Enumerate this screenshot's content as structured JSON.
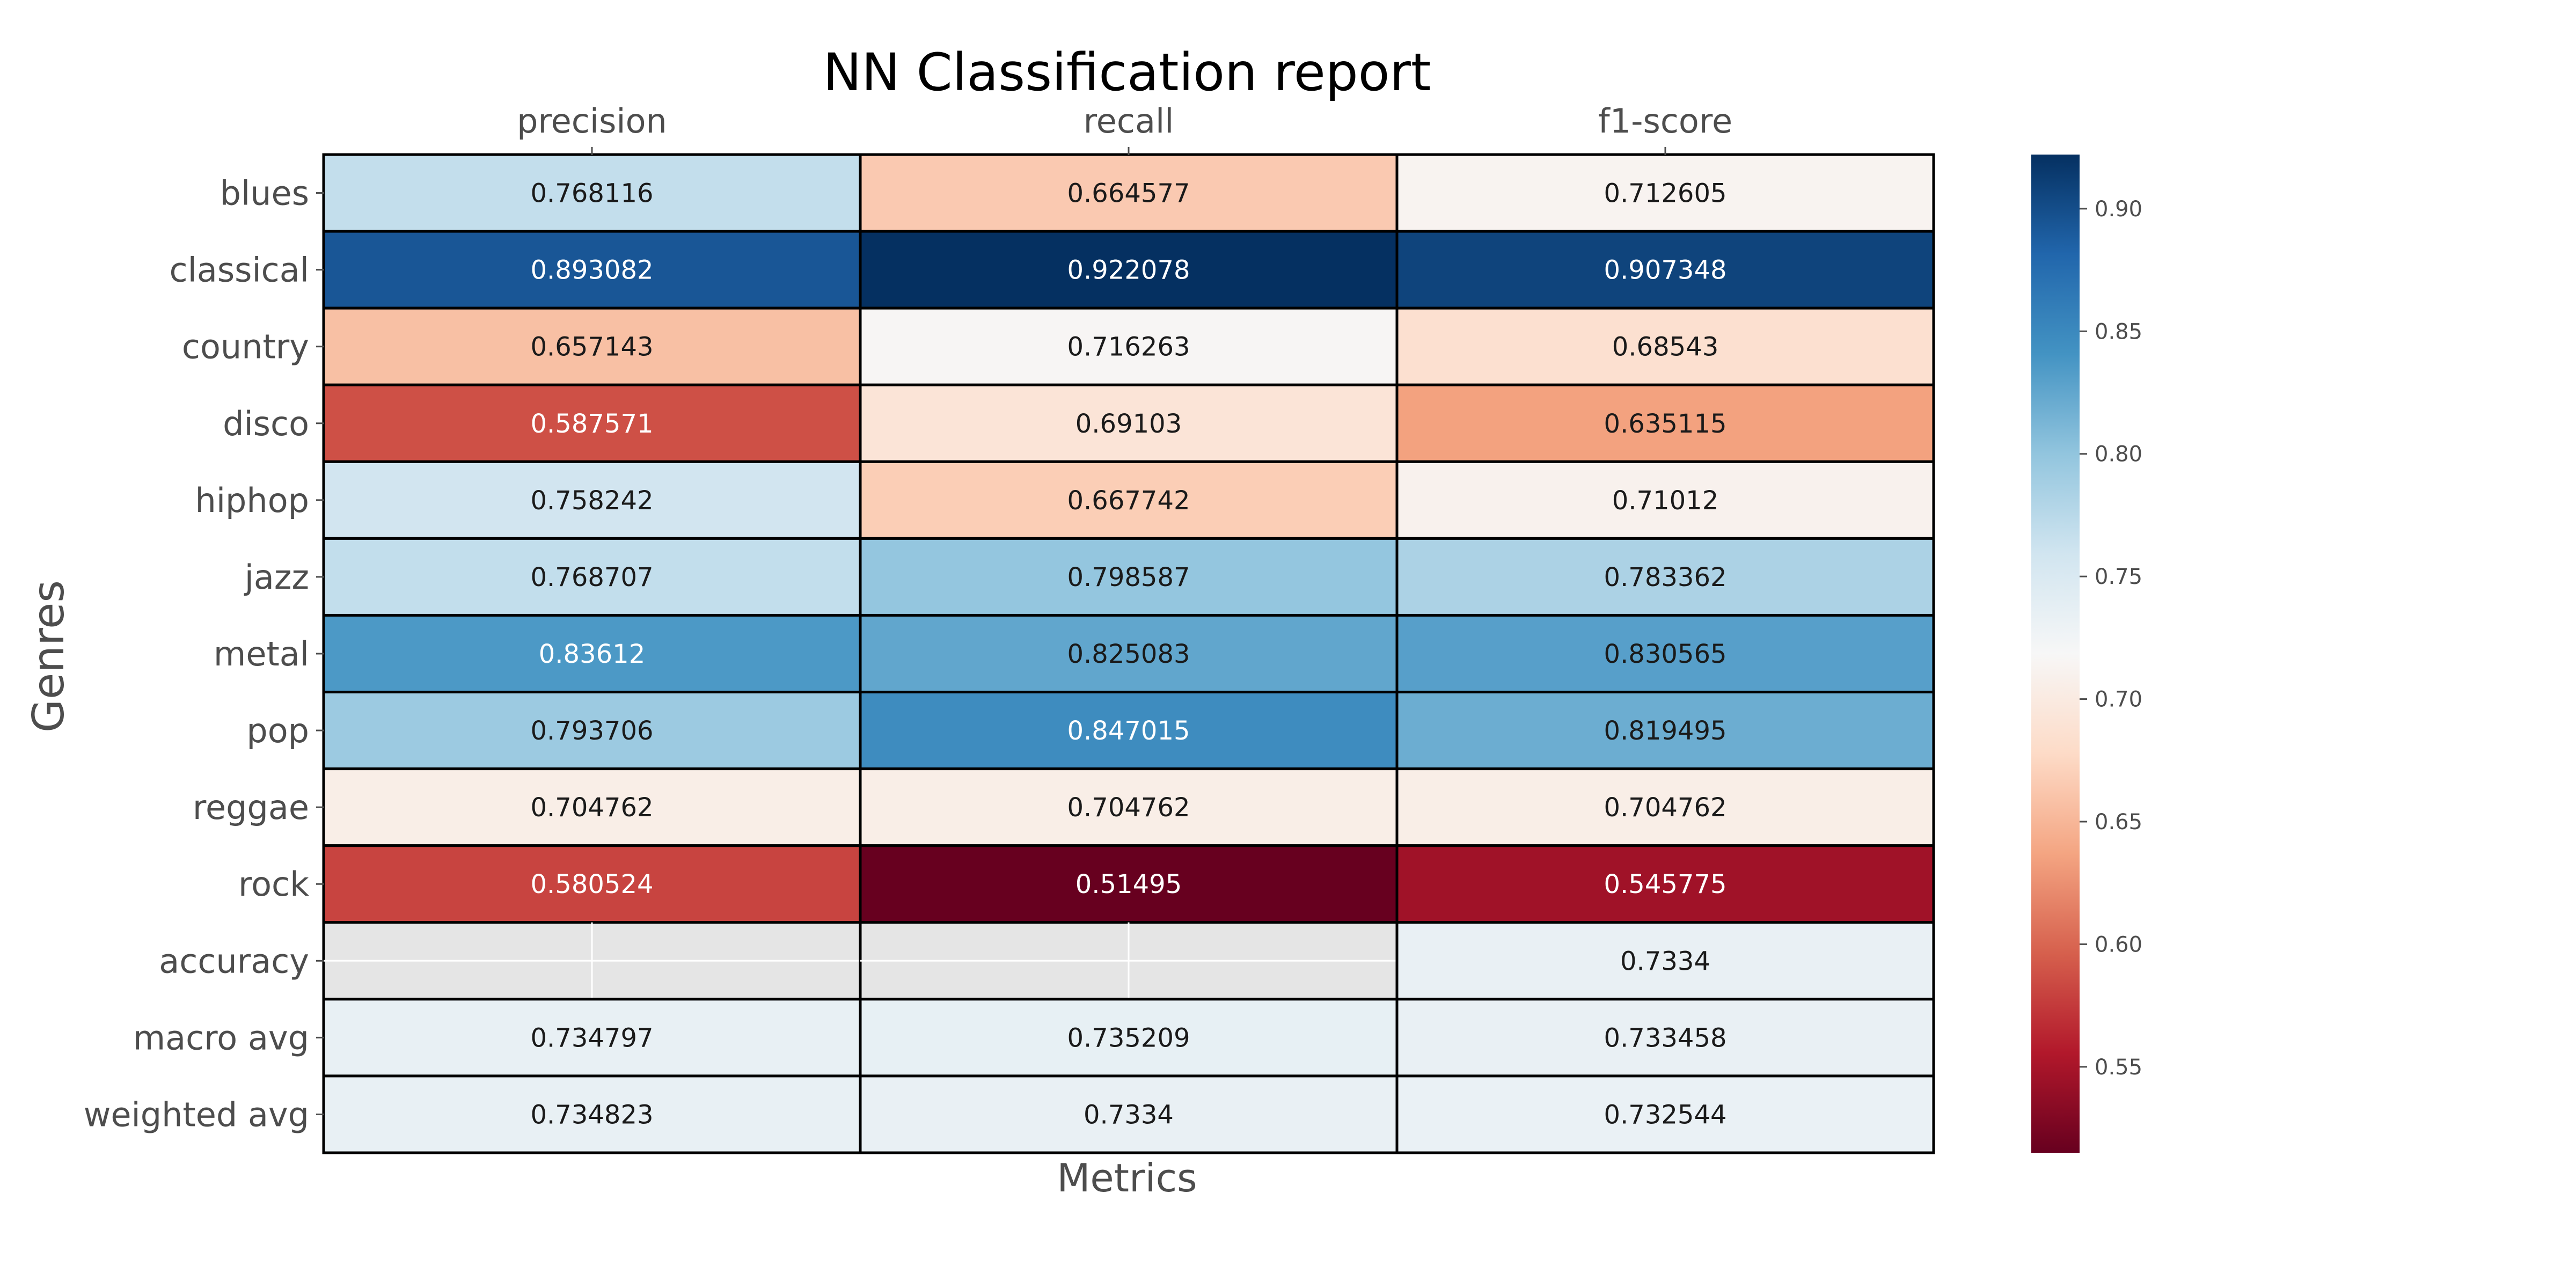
{
  "chart_data": {
    "type": "heatmap",
    "title": "NN Classification report",
    "xlabel": "Metrics",
    "ylabel": "Genres",
    "columns": [
      "precision",
      "recall",
      "f1-score"
    ],
    "rows": [
      "blues",
      "classical",
      "country",
      "disco",
      "hiphop",
      "jazz",
      "metal",
      "pop",
      "reggae",
      "rock",
      "accuracy",
      "macro avg",
      "weighted avg"
    ],
    "values": [
      [
        0.768116,
        0.664577,
        0.712605
      ],
      [
        0.893082,
        0.922078,
        0.907348
      ],
      [
        0.657143,
        0.716263,
        0.68543
      ],
      [
        0.587571,
        0.69103,
        0.635115
      ],
      [
        0.758242,
        0.667742,
        0.71012
      ],
      [
        0.768707,
        0.798587,
        0.783362
      ],
      [
        0.83612,
        0.825083,
        0.830565
      ],
      [
        0.793706,
        0.847015,
        0.819495
      ],
      [
        0.704762,
        0.704762,
        0.704762
      ],
      [
        0.580524,
        0.51495,
        0.545775
      ],
      [
        null,
        null,
        0.7334
      ],
      [
        0.734797,
        0.735209,
        0.733458
      ],
      [
        0.734823,
        0.7334,
        0.732544
      ]
    ],
    "labels": [
      [
        "0.768116",
        "0.664577",
        "0.712605"
      ],
      [
        "0.893082",
        "0.922078",
        "0.907348"
      ],
      [
        "0.657143",
        "0.716263",
        "0.68543"
      ],
      [
        "0.587571",
        "0.69103",
        "0.635115"
      ],
      [
        "0.758242",
        "0.667742",
        "0.71012"
      ],
      [
        "0.768707",
        "0.798587",
        "0.783362"
      ],
      [
        "0.83612",
        "0.825083",
        "0.830565"
      ],
      [
        "0.793706",
        "0.847015",
        "0.819495"
      ],
      [
        "0.704762",
        "0.704762",
        "0.704762"
      ],
      [
        "0.580524",
        "0.51495",
        "0.545775"
      ],
      [
        "",
        "",
        "0.7334"
      ],
      [
        "0.734797",
        "0.735209",
        "0.733458"
      ],
      [
        "0.734823",
        "0.7334",
        "0.732544"
      ]
    ],
    "colormap": "RdBu",
    "colorbar": {
      "min": 0.51495,
      "max": 0.922078,
      "ticks": [
        0.55,
        0.6,
        0.65,
        0.7,
        0.75,
        0.8,
        0.85,
        0.9
      ],
      "tick_labels": [
        "0.55",
        "0.60",
        "0.65",
        "0.70",
        "0.75",
        "0.80",
        "0.85",
        "0.90"
      ]
    },
    "missing_color": "#e5e5e5",
    "grid": true,
    "colorbar_position": "right"
  }
}
